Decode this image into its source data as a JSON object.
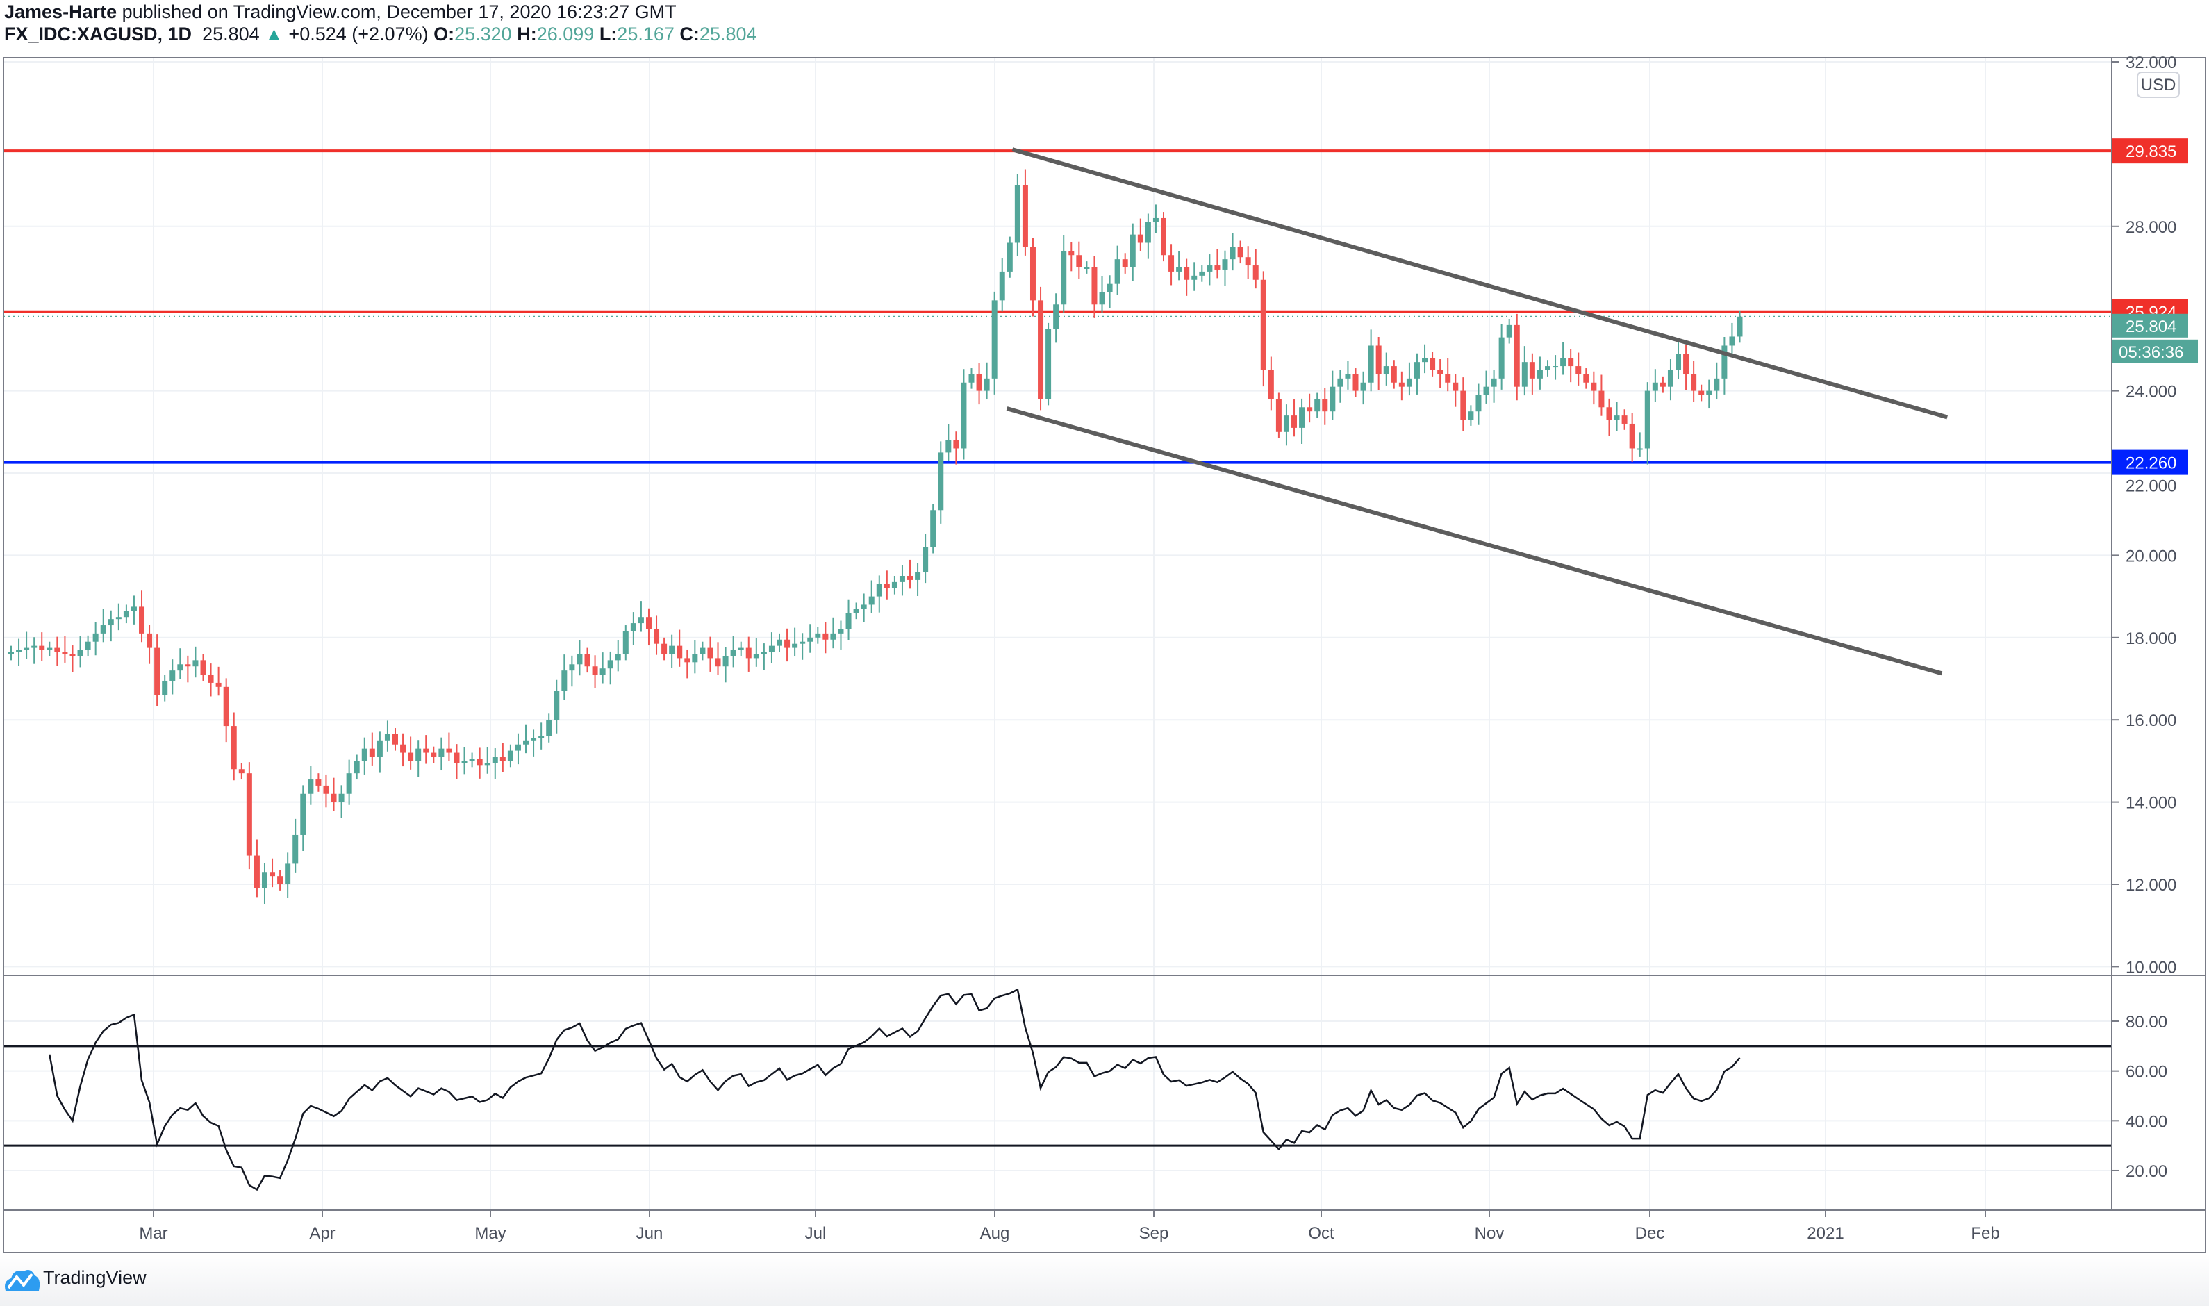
{
  "header": {
    "author": "James-Harte",
    "published": "published on TradingView.com, December 17, 2020 16:23:27 GMT",
    "symbol": "FX_IDC:XAGUSD, 1D",
    "last": "25.804",
    "change": "+0.524 (+2.07%)",
    "o_label": "O:",
    "o": "25.320",
    "h_label": "H:",
    "h": "26.099",
    "l_label": "L:",
    "l": "25.167",
    "c_label": "C:",
    "c": "25.804"
  },
  "colors": {
    "up": "#53a699",
    "down": "#ef5350",
    "resistance": "#f0302a",
    "support": "#0022ff",
    "trendline": "#5d5d5d"
  },
  "footer": {
    "brand": "TradingView",
    "icon": "tradingview-cloud-logo"
  },
  "chart_data": [
    {
      "type": "candlestick",
      "currency": "USD",
      "ylim": [
        10,
        32
      ],
      "y_ticks": [
        "32.000",
        "28.000",
        "24.000",
        "22.000",
        "20.000",
        "18.000",
        "16.000",
        "14.000",
        "12.000",
        "10.000"
      ],
      "x_ticks": [
        "Mar",
        "Apr",
        "May",
        "Jun",
        "Jul",
        "Aug",
        "Sep",
        "Oct",
        "Nov",
        "Dec",
        "2021",
        "Feb"
      ],
      "grid": true,
      "closes": {
        "Feb": [
          17.65,
          17.7,
          17.75,
          17.8,
          17.7,
          17.75,
          17.65,
          17.6,
          17.55,
          17.7,
          17.9,
          18.1,
          18.3,
          18.45,
          18.5,
          18.65,
          18.75,
          18.1,
          17.75,
          16.6
        ],
        "Mar": [
          16.95,
          17.2,
          17.35,
          17.3,
          17.45,
          17.1,
          16.9,
          16.8,
          15.85,
          14.8,
          14.7,
          12.7,
          11.9,
          12.3,
          12.2,
          12.0,
          12.5,
          13.2,
          14.2,
          14.55,
          14.4,
          14.2
        ],
        "Apr": [
          14.0,
          14.2,
          14.7,
          15.0,
          15.3,
          15.1,
          15.5,
          15.65,
          15.4,
          15.2,
          15.0,
          15.3,
          15.2,
          15.1,
          15.3,
          15.2,
          14.95,
          15.0,
          15.05,
          14.9,
          14.95
        ],
        "May": [
          15.1,
          15.0,
          15.25,
          15.4,
          15.5,
          15.55,
          15.6,
          16.0,
          16.7,
          17.2,
          17.35,
          17.6,
          17.3,
          17.1,
          17.25,
          17.45,
          17.6,
          18.15,
          18.35,
          18.5
        ],
        "Jun": [
          18.2,
          17.85,
          17.6,
          17.8,
          17.5,
          17.4,
          17.6,
          17.75,
          17.5,
          17.3,
          17.55,
          17.7,
          17.75,
          17.5,
          17.6,
          17.65,
          17.8,
          17.95,
          17.75,
          17.85,
          17.9,
          18.0
        ],
        "Jul": [
          18.1,
          17.95,
          18.1,
          18.2,
          18.6,
          18.7,
          18.8,
          19.0,
          19.3,
          19.2,
          19.35,
          19.5,
          19.4,
          19.6,
          20.2,
          21.1,
          22.5,
          22.8,
          22.6,
          24.2,
          24.4,
          24.0,
          24.3
        ],
        "Aug": [
          26.2,
          26.9,
          27.6,
          29.0,
          27.5,
          26.2,
          23.8,
          25.5,
          26.1,
          27.4,
          27.3,
          27.0,
          27.0,
          26.1,
          26.4,
          26.6,
          27.2,
          27.0,
          27.8,
          27.6,
          28.1
        ],
        "Sep": [
          28.2,
          27.3,
          26.9,
          27.0,
          26.7,
          26.8,
          26.9,
          27.05,
          26.95,
          27.2,
          27.5,
          27.25,
          27.05,
          26.7,
          24.5,
          23.8,
          23.0,
          23.4,
          23.1,
          23.6,
          23.5
        ],
        "Oct": [
          23.8,
          23.5,
          24.1,
          24.3,
          24.4,
          24.0,
          24.2,
          25.1,
          24.4,
          24.6,
          24.2,
          24.1,
          24.3,
          24.7,
          24.8,
          24.5,
          24.4,
          24.2,
          24.0,
          23.3,
          23.5,
          23.9
        ],
        "Nov": [
          24.1,
          24.3,
          25.3,
          25.6,
          24.1,
          24.7,
          24.3,
          24.5,
          24.6,
          24.6,
          24.8,
          24.6,
          24.4,
          24.2,
          24.0,
          23.6,
          23.3,
          23.4,
          23.2,
          22.6,
          22.6
        ],
        "Dec": [
          24.0,
          24.2,
          24.1,
          24.5,
          24.9,
          24.4,
          24.0,
          23.9,
          24.0,
          24.3,
          25.1,
          25.32,
          25.804
        ]
      },
      "levels": [
        {
          "price": 29.835,
          "label": "29.835",
          "color": "#f0302a"
        },
        {
          "price": 25.924,
          "label": "25.924",
          "color": "#f0302a"
        },
        {
          "price": 22.26,
          "label": "22.260",
          "color": "#0022ff"
        }
      ],
      "last_price": {
        "label": "25.804",
        "price": 25.804,
        "countdown": "05:36:36"
      },
      "trendlines": [
        {
          "from": {
            "date": "2020-08-06",
            "price": 29.87
          },
          "to": {
            "date": "2021-01-25",
            "price": 23.36
          }
        },
        {
          "from": {
            "date": "2020-08-05",
            "price": 23.57
          },
          "to": {
            "date": "2021-01-24",
            "price": 17.13
          }
        }
      ]
    },
    {
      "type": "line",
      "indicator": "RSI",
      "ylim": [
        10,
        95
      ],
      "y_ticks": [
        "80.00",
        "60.00",
        "40.00",
        "20.00"
      ],
      "bands": [
        70,
        30
      ]
    }
  ]
}
